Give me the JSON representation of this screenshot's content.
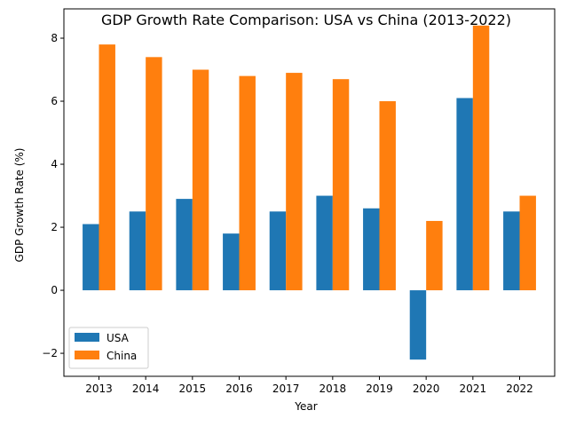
{
  "chart_data": {
    "type": "bar",
    "title": "GDP Growth Rate Comparison: USA vs China (2013-2022)",
    "xlabel": "Year",
    "ylabel": "GDP Growth Rate (%)",
    "categories": [
      "2013",
      "2014",
      "2015",
      "2016",
      "2017",
      "2018",
      "2019",
      "2020",
      "2021",
      "2022"
    ],
    "series": [
      {
        "name": "USA",
        "color": "#1f77b4",
        "values": [
          2.1,
          2.5,
          2.9,
          1.8,
          2.5,
          3.0,
          2.6,
          -2.2,
          6.1,
          2.5
        ]
      },
      {
        "name": "China",
        "color": "#ff7f0e",
        "values": [
          7.8,
          7.4,
          7.0,
          6.8,
          6.9,
          6.7,
          6.0,
          2.2,
          8.4,
          3.0
        ]
      }
    ],
    "ylim": [
      -2.73,
      8.93
    ],
    "yticks": [
      -2,
      0,
      2,
      4,
      6,
      8
    ],
    "grid": false,
    "legend_position": "lower-left"
  }
}
